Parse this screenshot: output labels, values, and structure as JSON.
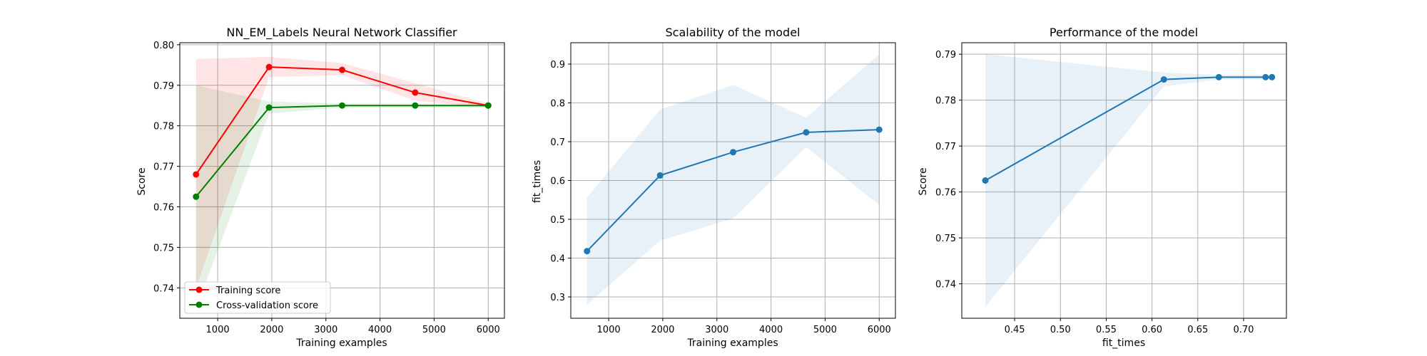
{
  "chart_data": [
    {
      "type": "line",
      "title": "NN_EM_Labels Neural Network Classifier",
      "xlabel": "Training examples",
      "ylabel": "Score",
      "xlim": [
        300,
        6300
      ],
      "ylim": [
        0.7325,
        0.8005
      ],
      "xticks": [
        1000,
        2000,
        3000,
        4000,
        5000,
        6000
      ],
      "yticks": [
        0.74,
        0.75,
        0.76,
        0.77,
        0.78,
        0.79,
        0.8
      ],
      "ytick_labels": [
        "0.74",
        "0.75",
        "0.76",
        "0.77",
        "0.78",
        "0.79",
        "0.80"
      ],
      "grid": true,
      "legend_position": "lower-left",
      "x": [
        600,
        1950,
        3300,
        4650,
        6000
      ],
      "series": [
        {
          "name": "Training score",
          "color": "#ff0000",
          "values": [
            0.768,
            0.7945,
            0.7938,
            0.7882,
            0.785
          ],
          "band_upper": [
            0.7965,
            0.797,
            0.7955,
            0.7905,
            0.7855
          ],
          "band_lower": [
            0.74,
            0.792,
            0.7925,
            0.7862,
            0.7845
          ],
          "band_color": "#ff0000"
        },
        {
          "name": "Cross-validation score",
          "color": "#008000",
          "values": [
            0.7625,
            0.7845,
            0.785,
            0.785,
            0.785
          ],
          "band_upper": [
            0.79,
            0.786,
            0.7855,
            0.7855,
            0.7855
          ],
          "band_lower": [
            0.735,
            0.783,
            0.7845,
            0.7845,
            0.7845
          ],
          "band_color": "#008000"
        }
      ]
    },
    {
      "type": "line",
      "title": "Scalability of the model",
      "xlabel": "Training examples",
      "ylabel": "fit_times",
      "xlim": [
        300,
        6300
      ],
      "ylim": [
        0.245,
        0.955
      ],
      "xticks": [
        1000,
        2000,
        3000,
        4000,
        5000,
        6000
      ],
      "yticks": [
        0.3,
        0.4,
        0.5,
        0.6,
        0.7,
        0.8,
        0.9
      ],
      "ytick_labels": [
        "0.3",
        "0.4",
        "0.5",
        "0.6",
        "0.7",
        "0.8",
        "0.9"
      ],
      "grid": true,
      "x": [
        600,
        1950,
        3300,
        4650,
        6000
      ],
      "series": [
        {
          "color": "#1f77b4",
          "values": [
            0.418,
            0.613,
            0.673,
            0.724,
            0.731
          ],
          "band_upper": [
            0.556,
            0.783,
            0.846,
            0.762,
            0.925
          ],
          "band_lower": [
            0.28,
            0.445,
            0.502,
            0.686,
            0.537
          ],
          "band_color": "#1f77b4"
        }
      ]
    },
    {
      "type": "line",
      "title": "Performance of the model",
      "xlabel": "fit_times",
      "ylabel": "Score",
      "xlim": [
        0.3923,
        0.7468
      ],
      "ylim": [
        0.7325,
        0.7925
      ],
      "xticks": [
        0.45,
        0.5,
        0.55,
        0.6,
        0.65,
        0.7
      ],
      "xtick_labels": [
        "0.45",
        "0.50",
        "0.55",
        "0.60",
        "0.65",
        "0.70"
      ],
      "yticks": [
        0.74,
        0.75,
        0.76,
        0.77,
        0.78,
        0.79
      ],
      "ytick_labels": [
        "0.74",
        "0.75",
        "0.76",
        "0.77",
        "0.78",
        "0.79"
      ],
      "grid": true,
      "x": [
        0.418,
        0.613,
        0.673,
        0.724,
        0.731
      ],
      "series": [
        {
          "color": "#1f77b4",
          "values": [
            0.7625,
            0.7845,
            0.785,
            0.785,
            0.785
          ],
          "band_upper": [
            0.79,
            0.786,
            0.7855,
            0.7855,
            0.7855
          ],
          "band_lower": [
            0.735,
            0.783,
            0.7845,
            0.7845,
            0.7845
          ],
          "band_color": "#1f77b4"
        }
      ]
    }
  ]
}
